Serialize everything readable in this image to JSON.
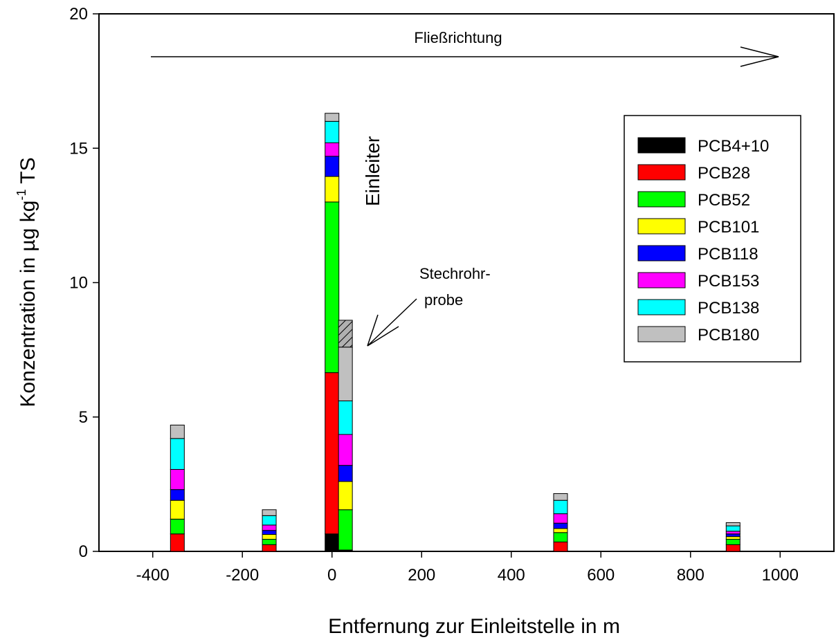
{
  "chart_data": {
    "type": "bar",
    "stacked": true,
    "xlabel": "Entfernung zur Einleitstelle in m",
    "ylabel": {
      "main": "Konzentration  in µg kg",
      "sup": "-1",
      "suffix": " TS"
    },
    "xlim": [
      -520,
      1120
    ],
    "ylim": [
      0,
      20
    ],
    "xticks": [
      -400,
      -200,
      0,
      200,
      400,
      600,
      800,
      1000
    ],
    "yticks": [
      0,
      5,
      10,
      15,
      20
    ],
    "grid": false,
    "legend_position": "top-right",
    "series": [
      {
        "name": "PCB4+10",
        "color": "#000000"
      },
      {
        "name": "PCB28",
        "color": "#ff0000"
      },
      {
        "name": "PCB52",
        "color": "#00ff00"
      },
      {
        "name": "PCB101",
        "color": "#ffff00"
      },
      {
        "name": "PCB118",
        "color": "#0000ff"
      },
      {
        "name": "PCB153",
        "color": "#ff00ff"
      },
      {
        "name": "PCB138",
        "color": "#00ffff"
      },
      {
        "name": "PCB180",
        "color": "#c0c0c0"
      }
    ],
    "bars": [
      {
        "x": -345,
        "values": [
          0,
          0.65,
          0.55,
          0.7,
          0.4,
          0.75,
          1.15,
          0.5
        ]
      },
      {
        "x": -140,
        "values": [
          0,
          0.25,
          0.2,
          0.18,
          0.15,
          0.2,
          0.35,
          0.22
        ]
      },
      {
        "x": 0,
        "values": [
          0.65,
          6.0,
          6.35,
          0.95,
          0.75,
          0.5,
          0.8,
          0.3
        ]
      },
      {
        "x": 30,
        "values": [
          0.05,
          0,
          1.5,
          1.05,
          0.6,
          1.15,
          1.25,
          2.0
        ],
        "hatched_top": 1.0
      },
      {
        "x": 510,
        "values": [
          0,
          0.35,
          0.35,
          0.15,
          0.2,
          0.35,
          0.5,
          0.25
        ]
      },
      {
        "x": 895,
        "values": [
          0,
          0.25,
          0.2,
          0.1,
          0.1,
          0.1,
          0.2,
          0.12
        ]
      }
    ],
    "annotations": {
      "flow": "Fließrichtung",
      "einleiter": "Einleiter",
      "stechrohr_line1": "Stechrohr-",
      "stechrohr_line2": "probe"
    }
  }
}
